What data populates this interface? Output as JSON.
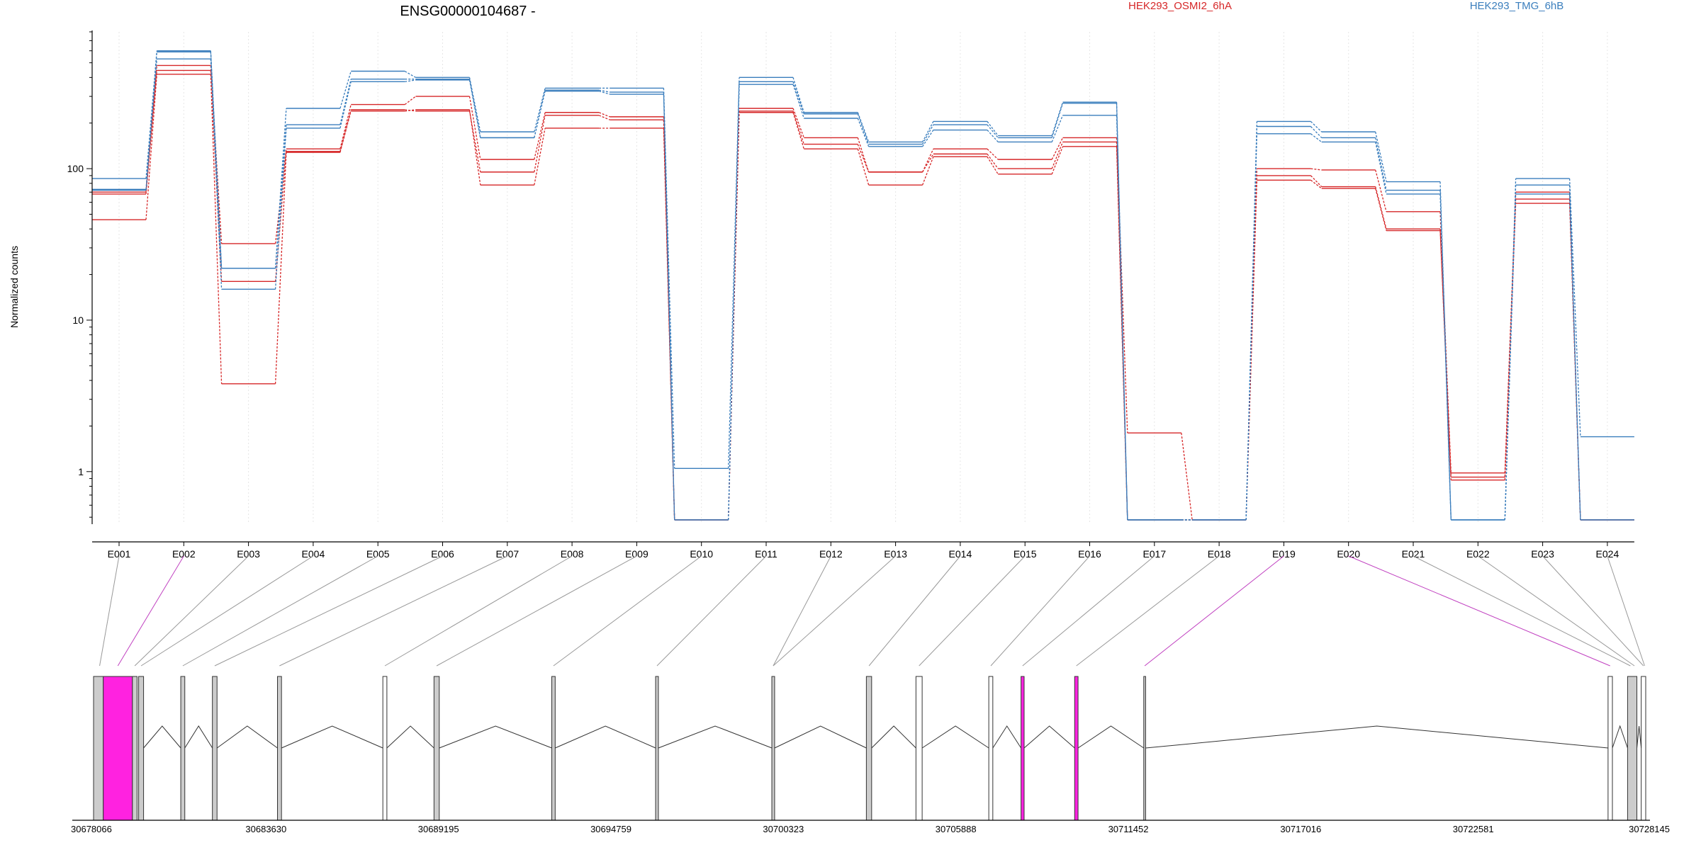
{
  "chart_data": {
    "type": "line",
    "title": "ENSG00000104687 -",
    "ylabel": "Normalized counts",
    "yscale": "log",
    "ylim": [
      0.45,
      800
    ],
    "yticks": [
      1,
      10,
      100
    ],
    "ytick_labels": [
      "1",
      "10",
      "100"
    ],
    "grid": "vertical dotted per exon",
    "legend_placement": "top-right",
    "categories": [
      "E001",
      "E002",
      "E003",
      "E004",
      "E005",
      "E006",
      "E007",
      "E008",
      "E009",
      "E010",
      "E011",
      "E012",
      "E013",
      "E014",
      "E015",
      "E016",
      "E017",
      "E018",
      "E019",
      "E020",
      "E021",
      "E022",
      "E023",
      "E024"
    ],
    "series": [
      {
        "name": "HEK293_OSMI2_6hA",
        "group": "A",
        "values": [
          70,
          480,
          32,
          135,
          265,
          300,
          115,
          235,
          220,
          0.48,
          250,
          160,
          95,
          135,
          115,
          160,
          1.8,
          0.48,
          100,
          98,
          52,
          0.98,
          70,
          0.48
        ]
      },
      {
        "name": "",
        "group": "A",
        "values": [
          68,
          445,
          18,
          130,
          245,
          240,
          95,
          225,
          210,
          0.48,
          240,
          145,
          95,
          125,
          100,
          150,
          0.48,
          0.48,
          90,
          76,
          40,
          0.92,
          63,
          0.48
        ]
      },
      {
        "name": "",
        "group": "A",
        "values": [
          46,
          420,
          3.8,
          128,
          240,
          245,
          78,
          185,
          185,
          0.48,
          235,
          135,
          78,
          120,
          92,
          140,
          0.48,
          0.48,
          84,
          74,
          39,
          0.88,
          59,
          0.48
        ]
      },
      {
        "name": "HEK293_TMG_6hB",
        "group": "B",
        "values": [
          86,
          600,
          22,
          250,
          440,
          400,
          175,
          340,
          340,
          1.05,
          400,
          235,
          150,
          205,
          165,
          275,
          0.48,
          0.48,
          205,
          175,
          82,
          0.48,
          86,
          1.7
        ]
      },
      {
        "name": "",
        "group": "B",
        "values": [
          73,
          590,
          22,
          195,
          390,
          390,
          160,
          330,
          320,
          0.48,
          375,
          230,
          145,
          195,
          160,
          270,
          0.48,
          0.48,
          190,
          160,
          72,
          0.48,
          78,
          0.48
        ]
      },
      {
        "name": "",
        "group": "B",
        "values": [
          72,
          530,
          16,
          185,
          375,
          385,
          160,
          325,
          310,
          0.48,
          360,
          215,
          140,
          180,
          150,
          225,
          0.48,
          0.48,
          170,
          150,
          68,
          0.48,
          68,
          0.48
        ]
      }
    ],
    "colors": {
      "A": "#d62728",
      "B": "#3a7ebd"
    },
    "gene_model": {
      "start": 30678066,
      "end": 30728145,
      "coordinate_ticks": [
        "30678066",
        "30683630",
        "30689195",
        "30694759",
        "30700323",
        "30705888",
        "30711452",
        "30717016",
        "30722581",
        "30728145"
      ],
      "highlight_color": "#ff22e0",
      "exon_fill": "#cccccc",
      "exon_blocks": [
        {
          "from": 30678066,
          "to": 30678380,
          "fill": "grey"
        },
        {
          "from": 30678380,
          "to": 30679320,
          "fill": "highlight"
        },
        {
          "from": 30679320,
          "to": 30679470,
          "fill": "grey"
        },
        {
          "from": 30679520,
          "to": 30679680,
          "fill": "grey"
        },
        {
          "from": 30680880,
          "to": 30681010,
          "fill": "grey"
        },
        {
          "from": 30681900,
          "to": 30682050,
          "fill": "grey"
        },
        {
          "from": 30684000,
          "to": 30684130,
          "fill": "grey"
        },
        {
          "from": 30687400,
          "to": 30687530,
          "fill": "white"
        },
        {
          "from": 30689050,
          "to": 30689220,
          "fill": "grey"
        },
        {
          "from": 30692850,
          "to": 30692960,
          "fill": "grey"
        },
        {
          "from": 30696200,
          "to": 30696290,
          "fill": "grey"
        },
        {
          "from": 30699950,
          "to": 30700040,
          "fill": "grey"
        },
        {
          "from": 30703000,
          "to": 30703170,
          "fill": "grey"
        },
        {
          "from": 30704600,
          "to": 30704800,
          "fill": "white"
        },
        {
          "from": 30706950,
          "to": 30707080,
          "fill": "white"
        },
        {
          "from": 30707990,
          "to": 30708090,
          "fill": "highlight"
        },
        {
          "from": 30709720,
          "to": 30709830,
          "fill": "highlight"
        },
        {
          "from": 30711950,
          "to": 30712010,
          "fill": "grey"
        },
        {
          "from": 30726930,
          "to": 30727070,
          "fill": "white"
        },
        {
          "from": 30727560,
          "to": 30727860,
          "fill": "grey"
        },
        {
          "from": 30728000,
          "to": 30728145,
          "fill": "white"
        }
      ],
      "introns": [
        [
          30679680,
          30680880
        ],
        [
          30681010,
          30681900
        ],
        [
          30682050,
          30684000
        ],
        [
          30684130,
          30687400
        ],
        [
          30687530,
          30689050
        ],
        [
          30689220,
          30692850
        ],
        [
          30692960,
          30696200
        ],
        [
          30696290,
          30699950
        ],
        [
          30700040,
          30703000
        ],
        [
          30703170,
          30704600
        ],
        [
          30704800,
          30706950
        ],
        [
          30707080,
          30707990
        ],
        [
          30708090,
          30709720
        ],
        [
          30709830,
          30711950
        ],
        [
          30712010,
          30726930
        ],
        [
          30727070,
          30727560
        ],
        [
          30727860,
          30728000
        ]
      ],
      "exon_positions": [
        30678262,
        30678850,
        30679395,
        30679600,
        30680945,
        30681975,
        30684065,
        30687465,
        30689135,
        30692905,
        30696245,
        30699995,
        30699995,
        30703085,
        30704700,
        30707015,
        30708040,
        30709775,
        30711980,
        30726995,
        30727650,
        30727780,
        30728072,
        30728110
      ],
      "highlighted_exons": [
        "E002",
        "E019",
        "E020"
      ]
    }
  }
}
